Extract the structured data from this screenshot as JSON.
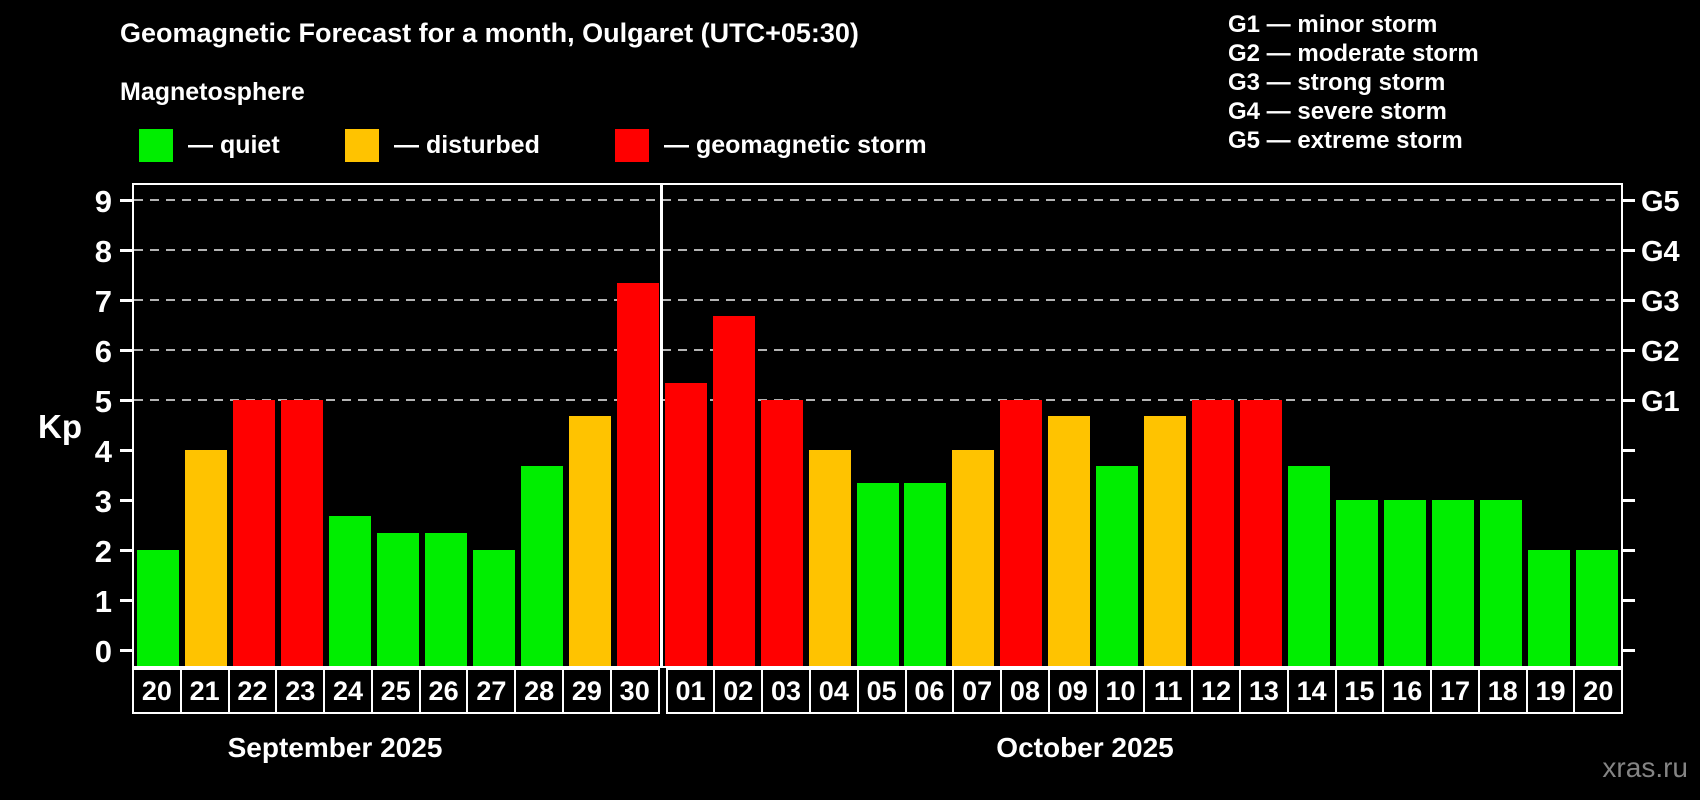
{
  "title": "Geomagnetic Forecast for a month, Oulgaret (UTC+05:30)",
  "subtitle": "Magnetosphere",
  "legend": {
    "quiet": "— quiet",
    "disturbed": "— disturbed",
    "storm": "— geomagnetic storm"
  },
  "g_legend": [
    "G1 — minor storm",
    "G2 — moderate storm",
    "G3 — strong storm",
    "G4 — severe storm",
    "G5 — extreme storm"
  ],
  "watermark": "xras.ru",
  "colors": {
    "quiet": "#00ee00",
    "disturbed": "#ffc300",
    "storm": "#ff0000",
    "grid": "#b4b4b4",
    "axis": "#ffffff",
    "watermark": "#848484"
  },
  "chart_data": {
    "type": "bar",
    "title": "Geomagnetic Forecast for a month, Oulgaret (UTC+05:30)",
    "xlabel": "",
    "ylabel": "Kp",
    "ylim": [
      0,
      9
    ],
    "yticks": [
      0,
      1,
      2,
      3,
      4,
      5,
      6,
      7,
      8,
      9
    ],
    "gridlines_at": [
      5,
      6,
      7,
      8,
      9
    ],
    "grid": "dashed horizontal at G-levels only",
    "legend_position": "top",
    "right_axis_labels": {
      "5": "G1",
      "6": "G2",
      "7": "G3",
      "8": "G4",
      "9": "G5"
    },
    "months": [
      {
        "label": "September 2025",
        "days": 11,
        "label_center_x": 335
      },
      {
        "label": "October 2025",
        "days": 20,
        "label_center_x": 1085
      }
    ],
    "categories": [
      "20",
      "21",
      "22",
      "23",
      "24",
      "25",
      "26",
      "27",
      "28",
      "29",
      "30",
      "01",
      "02",
      "03",
      "04",
      "05",
      "06",
      "07",
      "08",
      "09",
      "10",
      "11",
      "12",
      "13",
      "14",
      "15",
      "16",
      "17",
      "18",
      "19",
      "20"
    ],
    "values": [
      2,
      4,
      5,
      5,
      2.67,
      2.33,
      2.33,
      2,
      3.67,
      4.67,
      7.33,
      5.33,
      6.67,
      5,
      4,
      3.33,
      3.33,
      4,
      5,
      4.67,
      3.67,
      4.67,
      5,
      5,
      3.67,
      3,
      3,
      3,
      3,
      2,
      2
    ],
    "statuses": [
      "quiet",
      "disturbed",
      "storm",
      "storm",
      "quiet",
      "quiet",
      "quiet",
      "quiet",
      "quiet",
      "disturbed",
      "storm",
      "storm",
      "storm",
      "storm",
      "disturbed",
      "quiet",
      "quiet",
      "disturbed",
      "storm",
      "disturbed",
      "quiet",
      "disturbed",
      "storm",
      "storm",
      "quiet",
      "quiet",
      "quiet",
      "quiet",
      "quiet",
      "quiet",
      "quiet"
    ]
  }
}
